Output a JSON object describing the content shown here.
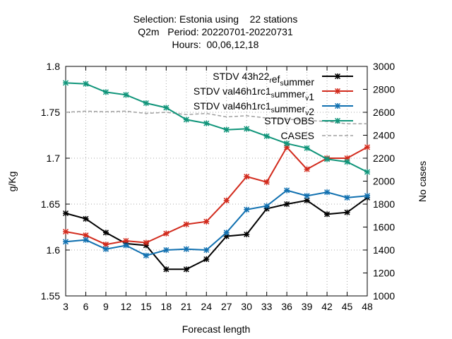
{
  "chart_data": {
    "type": "line",
    "title_lines": [
      "Selection: Estonia using    22 stations",
      "Q2m   Period: 20220701-20220731",
      "Hours:  00,06,12,18"
    ],
    "xlabel": "Forecast length",
    "ylabel": "g/Kg",
    "y2label": "No cases",
    "x": [
      3,
      6,
      9,
      12,
      15,
      18,
      21,
      24,
      27,
      30,
      33,
      36,
      39,
      42,
      45,
      48
    ],
    "xlim": [
      3,
      48
    ],
    "ylim": [
      1.55,
      1.8
    ],
    "y2lim": [
      1000,
      3000
    ],
    "yticks": [
      "1.55",
      "1.6",
      "1.65",
      "1.7",
      "1.75",
      "1.8"
    ],
    "y2ticks": [
      "1000",
      "1200",
      "1400",
      "1600",
      "1800",
      "2000",
      "2200",
      "2400",
      "2600",
      "2800",
      "3000"
    ],
    "xticks": [
      "3",
      "6",
      "9",
      "12",
      "15",
      "18",
      "21",
      "24",
      "27",
      "30",
      "33",
      "36",
      "39",
      "42",
      "45",
      "48"
    ],
    "grid": true,
    "legend_position": "top-right",
    "series": [
      {
        "name": "STDV 43h22_ref_summer",
        "legend_parts": [
          [
            "STDV 43h22",
            "n"
          ],
          [
            "r",
            "s"
          ],
          [
            "ef",
            "n"
          ],
          [
            "s",
            "s"
          ],
          [
            "ummer",
            "n"
          ]
        ],
        "color": "#000000",
        "marker": "x-star",
        "axis": "y",
        "values": [
          1.64,
          1.634,
          1.619,
          1.607,
          1.605,
          1.579,
          1.579,
          1.59,
          1.615,
          1.617,
          1.645,
          1.65,
          1.654,
          1.639,
          1.641,
          1.657
        ]
      },
      {
        "name": "STDV val46h1rc1_summer_v1",
        "legend_parts": [
          [
            "STDV val46h1rc1",
            "n"
          ],
          [
            "s",
            "s"
          ],
          [
            "ummer",
            "n"
          ],
          [
            "v",
            "s"
          ],
          [
            "1",
            "n"
          ]
        ],
        "color": "#d22b1d",
        "marker": "x-star",
        "axis": "y",
        "values": [
          1.62,
          1.616,
          1.606,
          1.61,
          1.608,
          1.618,
          1.628,
          1.631,
          1.654,
          1.68,
          1.674,
          1.712,
          1.688,
          1.7,
          1.7,
          1.712
        ]
      },
      {
        "name": "STDV val46h1rc1_summer_v2",
        "legend_parts": [
          [
            "STDV val46h1rc1",
            "n"
          ],
          [
            "s",
            "s"
          ],
          [
            "ummer",
            "n"
          ],
          [
            "v",
            "s"
          ],
          [
            "2",
            "n"
          ]
        ],
        "color": "#1070b0",
        "marker": "x-star",
        "axis": "y",
        "values": [
          1.609,
          1.611,
          1.601,
          1.605,
          1.594,
          1.6,
          1.601,
          1.6,
          1.619,
          1.644,
          1.648,
          1.665,
          1.659,
          1.663,
          1.657,
          1.659
        ]
      },
      {
        "name": "STDV OBS",
        "legend_parts": [
          [
            "STDV OBS",
            "n"
          ]
        ],
        "color": "#10957a",
        "marker": "x-star",
        "axis": "y",
        "values": [
          1.782,
          1.781,
          1.772,
          1.769,
          1.76,
          1.755,
          1.742,
          1.738,
          1.731,
          1.732,
          1.724,
          1.716,
          1.711,
          1.699,
          1.696,
          1.685
        ]
      },
      {
        "name": "CASES",
        "legend_parts": [
          [
            "CASES",
            "n"
          ]
        ],
        "color": "#a0a0a0",
        "marker": "none",
        "dashed": true,
        "axis": "y2",
        "values": [
          2600,
          2610,
          2605,
          2610,
          2590,
          2600,
          2580,
          2590,
          2560,
          2570,
          2550,
          2540,
          2530,
          2520,
          2500,
          2500
        ]
      }
    ]
  }
}
